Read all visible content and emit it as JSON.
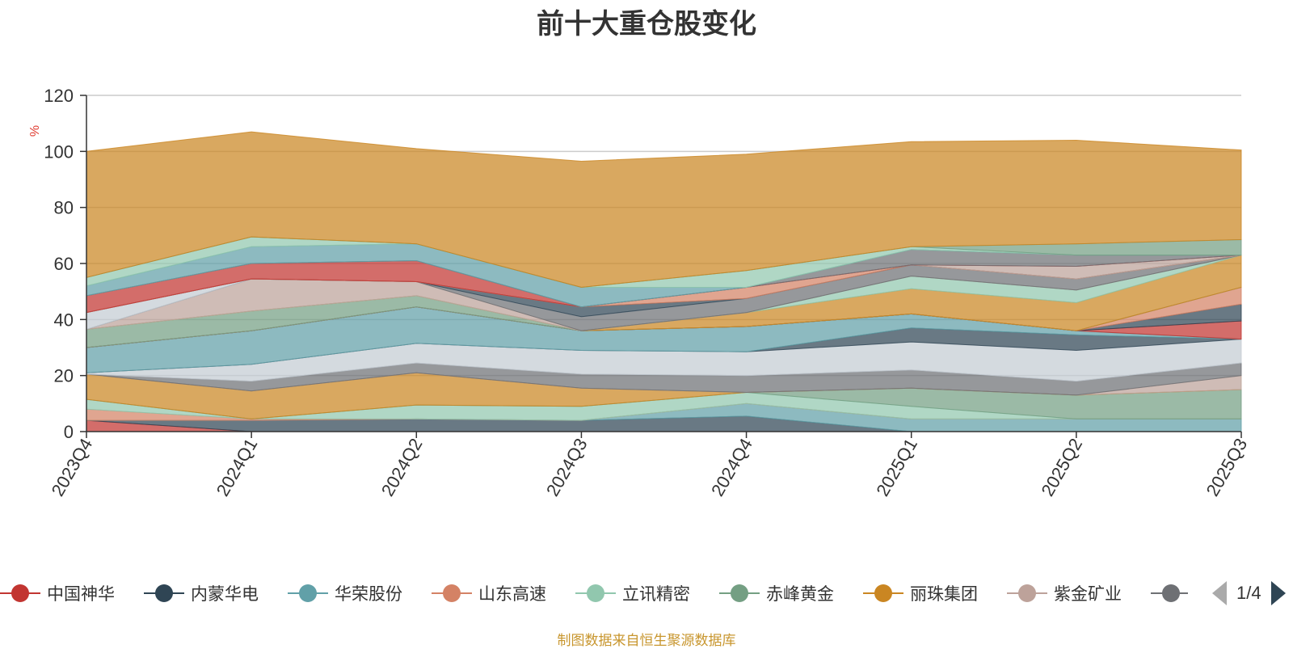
{
  "chart_data": {
    "type": "area",
    "title": "前十大重仓股变化",
    "ylabel": "%",
    "ylim": [
      0,
      120
    ],
    "yticks": [
      0,
      20,
      40,
      60,
      80,
      100,
      120
    ],
    "categories": [
      "2023Q4",
      "2024Q1",
      "2024Q2",
      "2024Q3",
      "2024Q4",
      "2025Q1",
      "2025Q2",
      "2025Q3"
    ],
    "legend_position": "bottom",
    "legend_page": "1/4",
    "legend": [
      {
        "name": "中国神华",
        "color": "#c23531"
      },
      {
        "name": "内蒙华电",
        "color": "#2f4554"
      },
      {
        "name": "华荣股份",
        "color": "#61a0a8"
      },
      {
        "name": "山东高速",
        "color": "#d48265"
      },
      {
        "name": "立讯精密",
        "color": "#91c7ae"
      },
      {
        "name": "赤峰黄金",
        "color": "#749f83"
      },
      {
        "name": "丽珠集团",
        "color": "#ca8622"
      },
      {
        "name": "紫金矿业",
        "color": "#bda29a"
      },
      {
        "name": "…",
        "color": "#6e7074"
      }
    ],
    "series": [
      {
        "color": "#c23531",
        "values": [
          4,
          0,
          0,
          0,
          0,
          0,
          0,
          0
        ]
      },
      {
        "color": "#2f4554",
        "values": [
          0,
          4,
          4.5,
          4,
          5.5,
          0,
          0,
          0
        ]
      },
      {
        "color": "#61a0a8",
        "values": [
          0,
          0,
          0,
          0,
          4.5,
          4.5,
          4.5,
          4.5
        ]
      },
      {
        "color": "#d48265",
        "values": [
          4,
          0.5,
          0,
          0,
          0,
          0,
          0,
          0
        ]
      },
      {
        "color": "#91c7ae",
        "values": [
          3.5,
          0,
          5,
          5,
          4,
          4.5,
          0,
          0
        ]
      },
      {
        "color": "#749f83",
        "values": [
          0,
          0,
          0,
          0,
          0,
          6.5,
          8.5,
          10.5
        ]
      },
      {
        "color": "#ca8622",
        "values": [
          9,
          10,
          11.5,
          6.5,
          0,
          0,
          0,
          0
        ]
      },
      {
        "color": "#bda29a",
        "values": [
          0,
          0,
          0,
          0,
          0,
          0,
          0,
          5
        ]
      },
      {
        "color": "#6e7074",
        "values": [
          0,
          3.5,
          3.5,
          5,
          6,
          6.5,
          5,
          4.5
        ]
      },
      {
        "color": "#c4ccd3",
        "values": [
          0.5,
          6,
          7,
          8.5,
          8.5,
          10,
          11,
          8.5
        ]
      },
      {
        "color": "#2f4554",
        "values": [
          0,
          0,
          0,
          0,
          0,
          5,
          5.5,
          0
        ]
      },
      {
        "color": "#61a0a8",
        "values": [
          9,
          12,
          13,
          7,
          9,
          5,
          1.5,
          0
        ]
      },
      {
        "color": "#c23531",
        "values": [
          0,
          0,
          0,
          0,
          0,
          0,
          0,
          6.5
        ]
      },
      {
        "color": "#2f4554",
        "values": [
          0,
          0,
          0,
          0,
          0,
          0,
          0,
          6
        ]
      },
      {
        "color": "#d48265",
        "values": [
          0,
          0,
          0,
          0,
          0,
          0,
          0,
          6
        ]
      },
      {
        "color": "#749f83",
        "values": [
          6.5,
          7,
          4,
          0,
          0,
          0,
          0,
          0
        ]
      },
      {
        "color": "#ca8622",
        "values": [
          0,
          0,
          0,
          0,
          5,
          9,
          10,
          11.5
        ]
      },
      {
        "color": "#91c7ae",
        "values": [
          0,
          0,
          0,
          0,
          0,
          4.5,
          4.5,
          0
        ]
      },
      {
        "color": "#bda29a",
        "values": [
          0,
          11.5,
          5,
          0,
          0,
          0,
          0,
          0
        ]
      },
      {
        "color": "#6e7074",
        "values": [
          0,
          0,
          0,
          5,
          5,
          4,
          4,
          0
        ]
      },
      {
        "color": "#c4ccd3",
        "values": [
          6,
          0,
          0,
          0,
          0,
          0,
          0,
          0
        ]
      },
      {
        "color": "#2f4554",
        "values": [
          0,
          0,
          0,
          3.5,
          0,
          0,
          0,
          0
        ]
      },
      {
        "color": "#d48265",
        "values": [
          0,
          0,
          0,
          0,
          4,
          0,
          0,
          0
        ]
      },
      {
        "color": "#bda29a",
        "values": [
          0,
          0,
          0,
          0,
          0,
          0,
          4.5,
          0
        ]
      },
      {
        "color": "#c23531",
        "values": [
          6,
          5.5,
          7.5,
          0,
          0,
          0,
          0,
          0
        ]
      },
      {
        "color": "#6e7074",
        "values": [
          0,
          0,
          0,
          0,
          0,
          5.5,
          4,
          0
        ]
      },
      {
        "color": "#61a0a8",
        "values": [
          3.5,
          6,
          6,
          7,
          0,
          0,
          0,
          0
        ]
      },
      {
        "color": "#91c7ae",
        "values": [
          3,
          3.5,
          0,
          0,
          6,
          1,
          0,
          0
        ]
      },
      {
        "color": "#749f83",
        "values": [
          0,
          0,
          0,
          0,
          0,
          0,
          4,
          5.5
        ]
      },
      {
        "color": "#ca8622",
        "values": [
          45,
          37.5,
          34,
          45,
          41.5,
          37.5,
          37,
          32
        ]
      }
    ]
  },
  "source_note": "制图数据来自恒生聚源数据库"
}
